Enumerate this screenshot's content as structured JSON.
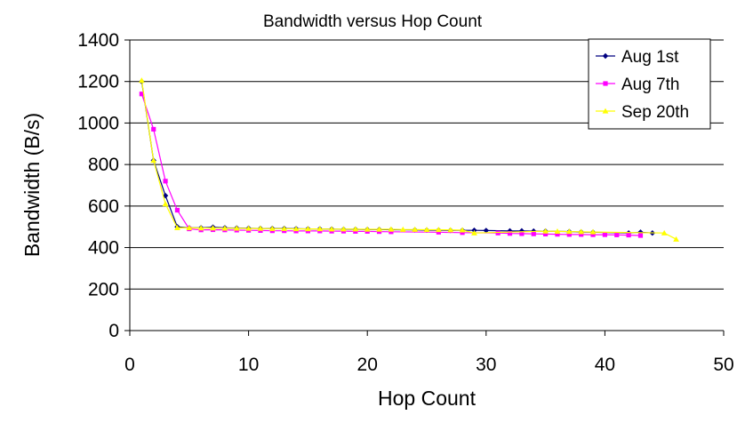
{
  "chart_data": {
    "type": "line",
    "title": "Bandwidth versus Hop Count",
    "xlabel": "Hop Count",
    "ylabel": "Bandwidth (B/s)",
    "xlim": [
      0,
      50
    ],
    "ylim": [
      0,
      1400
    ],
    "xticks": [
      0,
      10,
      20,
      30,
      40,
      50
    ],
    "yticks": [
      0,
      200,
      400,
      600,
      800,
      1000,
      1200,
      1400
    ],
    "grid": "horizontal",
    "legend_position": "top-right",
    "series": [
      {
        "name": "Aug 1st",
        "color": "#000080",
        "marker": "diamond",
        "points": [
          [
            1,
            1200
          ],
          [
            2,
            820
          ],
          [
            3,
            650
          ],
          [
            4,
            500
          ],
          [
            5,
            495
          ],
          [
            6,
            495
          ],
          [
            7,
            498
          ],
          [
            8,
            495
          ],
          [
            9,
            494
          ],
          [
            10,
            493
          ],
          [
            11,
            492
          ],
          [
            12,
            492
          ],
          [
            13,
            492
          ],
          [
            14,
            491
          ],
          [
            15,
            490
          ],
          [
            16,
            490
          ],
          [
            17,
            489
          ],
          [
            18,
            488
          ],
          [
            19,
            488
          ],
          [
            20,
            487
          ],
          [
            21,
            487
          ],
          [
            22,
            486
          ],
          [
            24,
            485
          ],
          [
            25,
            484
          ],
          [
            26,
            484
          ],
          [
            27,
            483
          ],
          [
            28,
            483
          ],
          [
            29,
            483
          ],
          [
            30,
            482
          ],
          [
            32,
            480
          ],
          [
            33,
            480
          ],
          [
            34,
            479
          ],
          [
            35,
            479
          ],
          [
            37,
            477
          ],
          [
            38,
            475
          ],
          [
            39,
            474
          ],
          [
            42,
            470
          ],
          [
            43,
            474
          ],
          [
            44,
            470
          ]
        ]
      },
      {
        "name": "Aug 7th",
        "color": "#FF00FF",
        "marker": "square",
        "points": [
          [
            1,
            1140
          ],
          [
            2,
            970
          ],
          [
            3,
            720
          ],
          [
            4,
            580
          ],
          [
            5,
            490
          ],
          [
            6,
            485
          ],
          [
            7,
            486
          ],
          [
            8,
            485
          ],
          [
            9,
            484
          ],
          [
            10,
            483
          ],
          [
            11,
            482
          ],
          [
            12,
            481
          ],
          [
            13,
            481
          ],
          [
            14,
            480
          ],
          [
            15,
            480
          ],
          [
            16,
            480
          ],
          [
            17,
            479
          ],
          [
            18,
            479
          ],
          [
            19,
            478
          ],
          [
            20,
            478
          ],
          [
            21,
            477
          ],
          [
            22,
            476
          ],
          [
            26,
            474
          ],
          [
            28,
            472
          ],
          [
            31,
            470
          ],
          [
            32,
            468
          ],
          [
            33,
            467
          ],
          [
            34,
            466
          ],
          [
            35,
            465
          ],
          [
            36,
            464
          ],
          [
            37,
            463
          ],
          [
            38,
            463
          ],
          [
            39,
            462
          ],
          [
            40,
            462
          ],
          [
            41,
            461
          ],
          [
            42,
            460
          ],
          [
            43,
            458
          ]
        ]
      },
      {
        "name": "Sep 20th",
        "color": "#FFFF00",
        "marker": "triangle",
        "points": [
          [
            1,
            1205
          ],
          [
            2,
            820
          ],
          [
            3,
            610
          ],
          [
            4,
            495
          ],
          [
            5,
            495
          ],
          [
            6,
            494
          ],
          [
            7,
            494
          ],
          [
            8,
            493
          ],
          [
            9,
            493
          ],
          [
            10,
            492
          ],
          [
            11,
            492
          ],
          [
            12,
            491
          ],
          [
            13,
            491
          ],
          [
            14,
            490
          ],
          [
            15,
            490
          ],
          [
            16,
            490
          ],
          [
            17,
            489
          ],
          [
            18,
            489
          ],
          [
            19,
            489
          ],
          [
            20,
            488
          ],
          [
            21,
            488
          ],
          [
            22,
            488
          ],
          [
            23,
            487
          ],
          [
            24,
            487
          ],
          [
            25,
            486
          ],
          [
            26,
            486
          ],
          [
            27,
            485
          ],
          [
            28,
            484
          ],
          [
            29,
            470
          ],
          [
            35,
            479
          ],
          [
            36,
            478
          ],
          [
            37,
            477
          ],
          [
            38,
            476
          ],
          [
            39,
            475
          ],
          [
            45,
            470
          ],
          [
            46,
            440
          ]
        ]
      }
    ]
  }
}
